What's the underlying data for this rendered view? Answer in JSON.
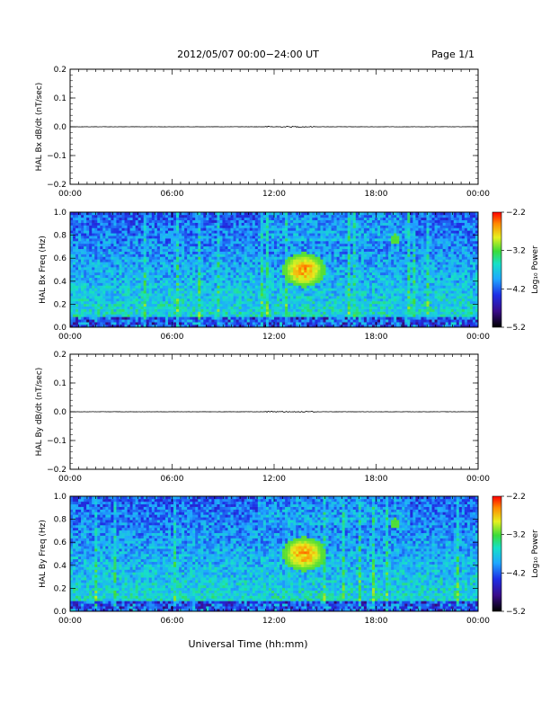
{
  "header": {
    "title": "2012/05/07  00:00−24:00 UT",
    "page": "Page 1/1"
  },
  "footer": {
    "xlabel": "Universal Time (hh:mm)"
  },
  "chart_data": [
    {
      "type": "line",
      "ylabel": "HAL Bx dB/dt (nT/sec)",
      "xlim": [
        "00:00",
        "24:00"
      ],
      "ylim": [
        -0.2,
        0.2
      ],
      "x_tick_labels": [
        "00:00",
        "06:00",
        "12:00",
        "18:00",
        "00:00"
      ],
      "y_tick_labels": [
        "0.2",
        "0.1",
        "0.0",
        "−0.1",
        "−0.2"
      ],
      "baseline": 0.0,
      "trace_color": "#000000"
    },
    {
      "type": "heatmap",
      "ylabel": "HAL Bx Freq (Hz)",
      "xlim": [
        "00:00",
        "24:00"
      ],
      "ylim": [
        0.0,
        1.0
      ],
      "x_tick_labels": [
        "00:00",
        "06:00",
        "12:00",
        "18:00",
        "00:00"
      ],
      "y_tick_labels": [
        "1.0",
        "0.8",
        "0.6",
        "0.4",
        "0.2",
        "0.0"
      ],
      "colorbar": {
        "label": "Log₁₀ Power",
        "range": [
          -5.2,
          -2.2
        ],
        "tick_labels": [
          "−2.2",
          "−3.2",
          "−4.2",
          "−5.2"
        ]
      },
      "features": [
        {
          "time_hours": [
            12.5,
            15.0
          ],
          "freq_hz": [
            0.35,
            0.65
          ],
          "peak_log_power": -2.4
        },
        {
          "time_hours": [
            18.8,
            19.4
          ],
          "freq_hz": [
            0.73,
            0.81
          ],
          "peak_log_power": -3.2
        }
      ]
    },
    {
      "type": "line",
      "ylabel": "HAL By dB/dt (nT/sec)",
      "xlim": [
        "00:00",
        "24:00"
      ],
      "ylim": [
        -0.2,
        0.2
      ],
      "x_tick_labels": [
        "00:00",
        "06:00",
        "12:00",
        "18:00",
        "00:00"
      ],
      "y_tick_labels": [
        "0.2",
        "0.1",
        "0.0",
        "−0.1",
        "−0.2"
      ],
      "baseline": 0.0,
      "trace_color": "#000000"
    },
    {
      "type": "heatmap",
      "ylabel": "HAL By Freq (Hz)",
      "xlim": [
        "00:00",
        "24:00"
      ],
      "ylim": [
        0.0,
        1.0
      ],
      "x_tick_labels": [
        "00:00",
        "06:00",
        "12:00",
        "18:00",
        "00:00"
      ],
      "y_tick_labels": [
        "1.0",
        "0.8",
        "0.6",
        "0.4",
        "0.2",
        "0.0"
      ],
      "colorbar": {
        "label": "Log₁₀ Power",
        "range": [
          -5.2,
          -2.2
        ],
        "tick_labels": [
          "−2.2",
          "−3.2",
          "−4.2",
          "−5.2"
        ]
      },
      "features": [
        {
          "time_hours": [
            12.5,
            15.0
          ],
          "freq_hz": [
            0.35,
            0.65
          ],
          "peak_log_power": -2.4
        },
        {
          "time_hours": [
            18.8,
            19.4
          ],
          "freq_hz": [
            0.73,
            0.81
          ],
          "peak_log_power": -3.2
        }
      ]
    }
  ]
}
